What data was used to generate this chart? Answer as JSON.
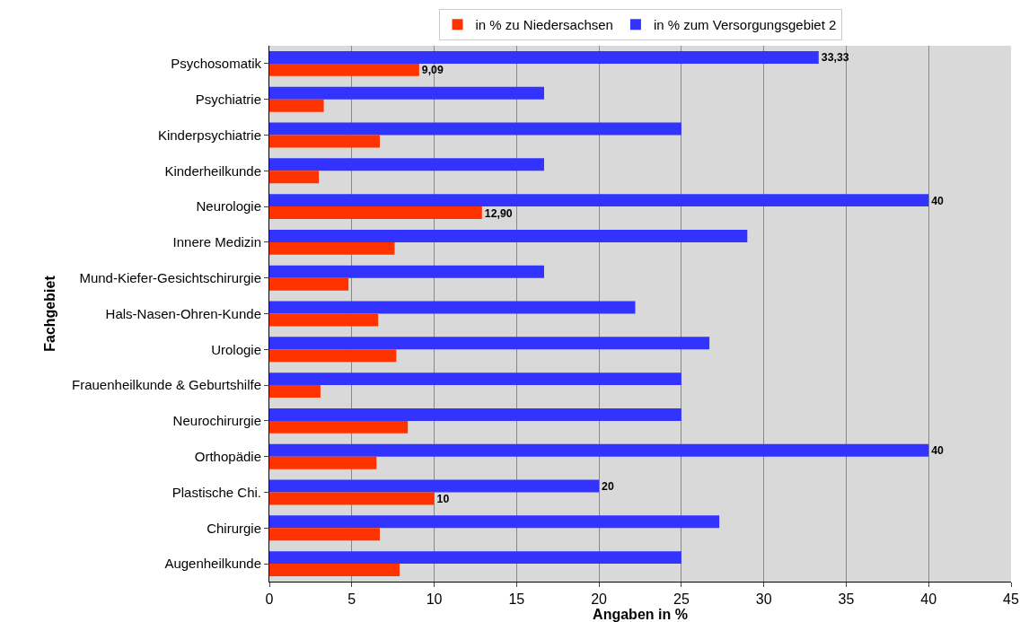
{
  "chart_data": {
    "type": "bar",
    "orientation": "horizontal",
    "xlabel": "Angaben in %",
    "ylabel": "Fachgebiet",
    "categories": [
      "Psychosomatik",
      "Psychiatrie",
      "Kinderpsychiatrie",
      "Kinderheilkunde",
      "Neurologie",
      "Innere Medizin",
      "Mund-Kiefer-Gesichtschirurgie",
      "Hals-Nasen-Ohren-Kunde",
      "Urologie",
      "Frauenheilkunde & Geburtshilfe",
      "Neurochirurgie",
      "Orthopädie",
      "Plastische Chi.",
      "Chirurgie",
      "Augenheilkunde"
    ],
    "series": [
      {
        "name": "in % zu Niedersachsen",
        "color": "#ff3300",
        "values": [
          9.09,
          3.3,
          6.7,
          3.0,
          12.9,
          7.6,
          4.8,
          6.6,
          7.7,
          3.1,
          8.4,
          6.5,
          10,
          6.7,
          7.9
        ],
        "value_labels": [
          "9,09",
          null,
          null,
          null,
          "12,90",
          null,
          null,
          null,
          null,
          null,
          null,
          null,
          "10",
          null,
          null
        ]
      },
      {
        "name": "in % zum Versorgungsgebiet 2",
        "color": "#3333ff",
        "values": [
          33.33,
          16.67,
          25,
          16.67,
          40,
          29.0,
          16.67,
          22.2,
          26.7,
          25,
          25,
          40,
          20,
          27.3,
          25
        ],
        "value_labels": [
          "33,33",
          null,
          null,
          null,
          "40",
          null,
          null,
          null,
          null,
          null,
          null,
          "40",
          "20",
          null,
          null
        ]
      }
    ],
    "xlim": [
      0,
      45
    ],
    "xticks": [
      0,
      5,
      10,
      15,
      20,
      25,
      30,
      35,
      40,
      45
    ],
    "grid": "x",
    "legend": "top"
  }
}
